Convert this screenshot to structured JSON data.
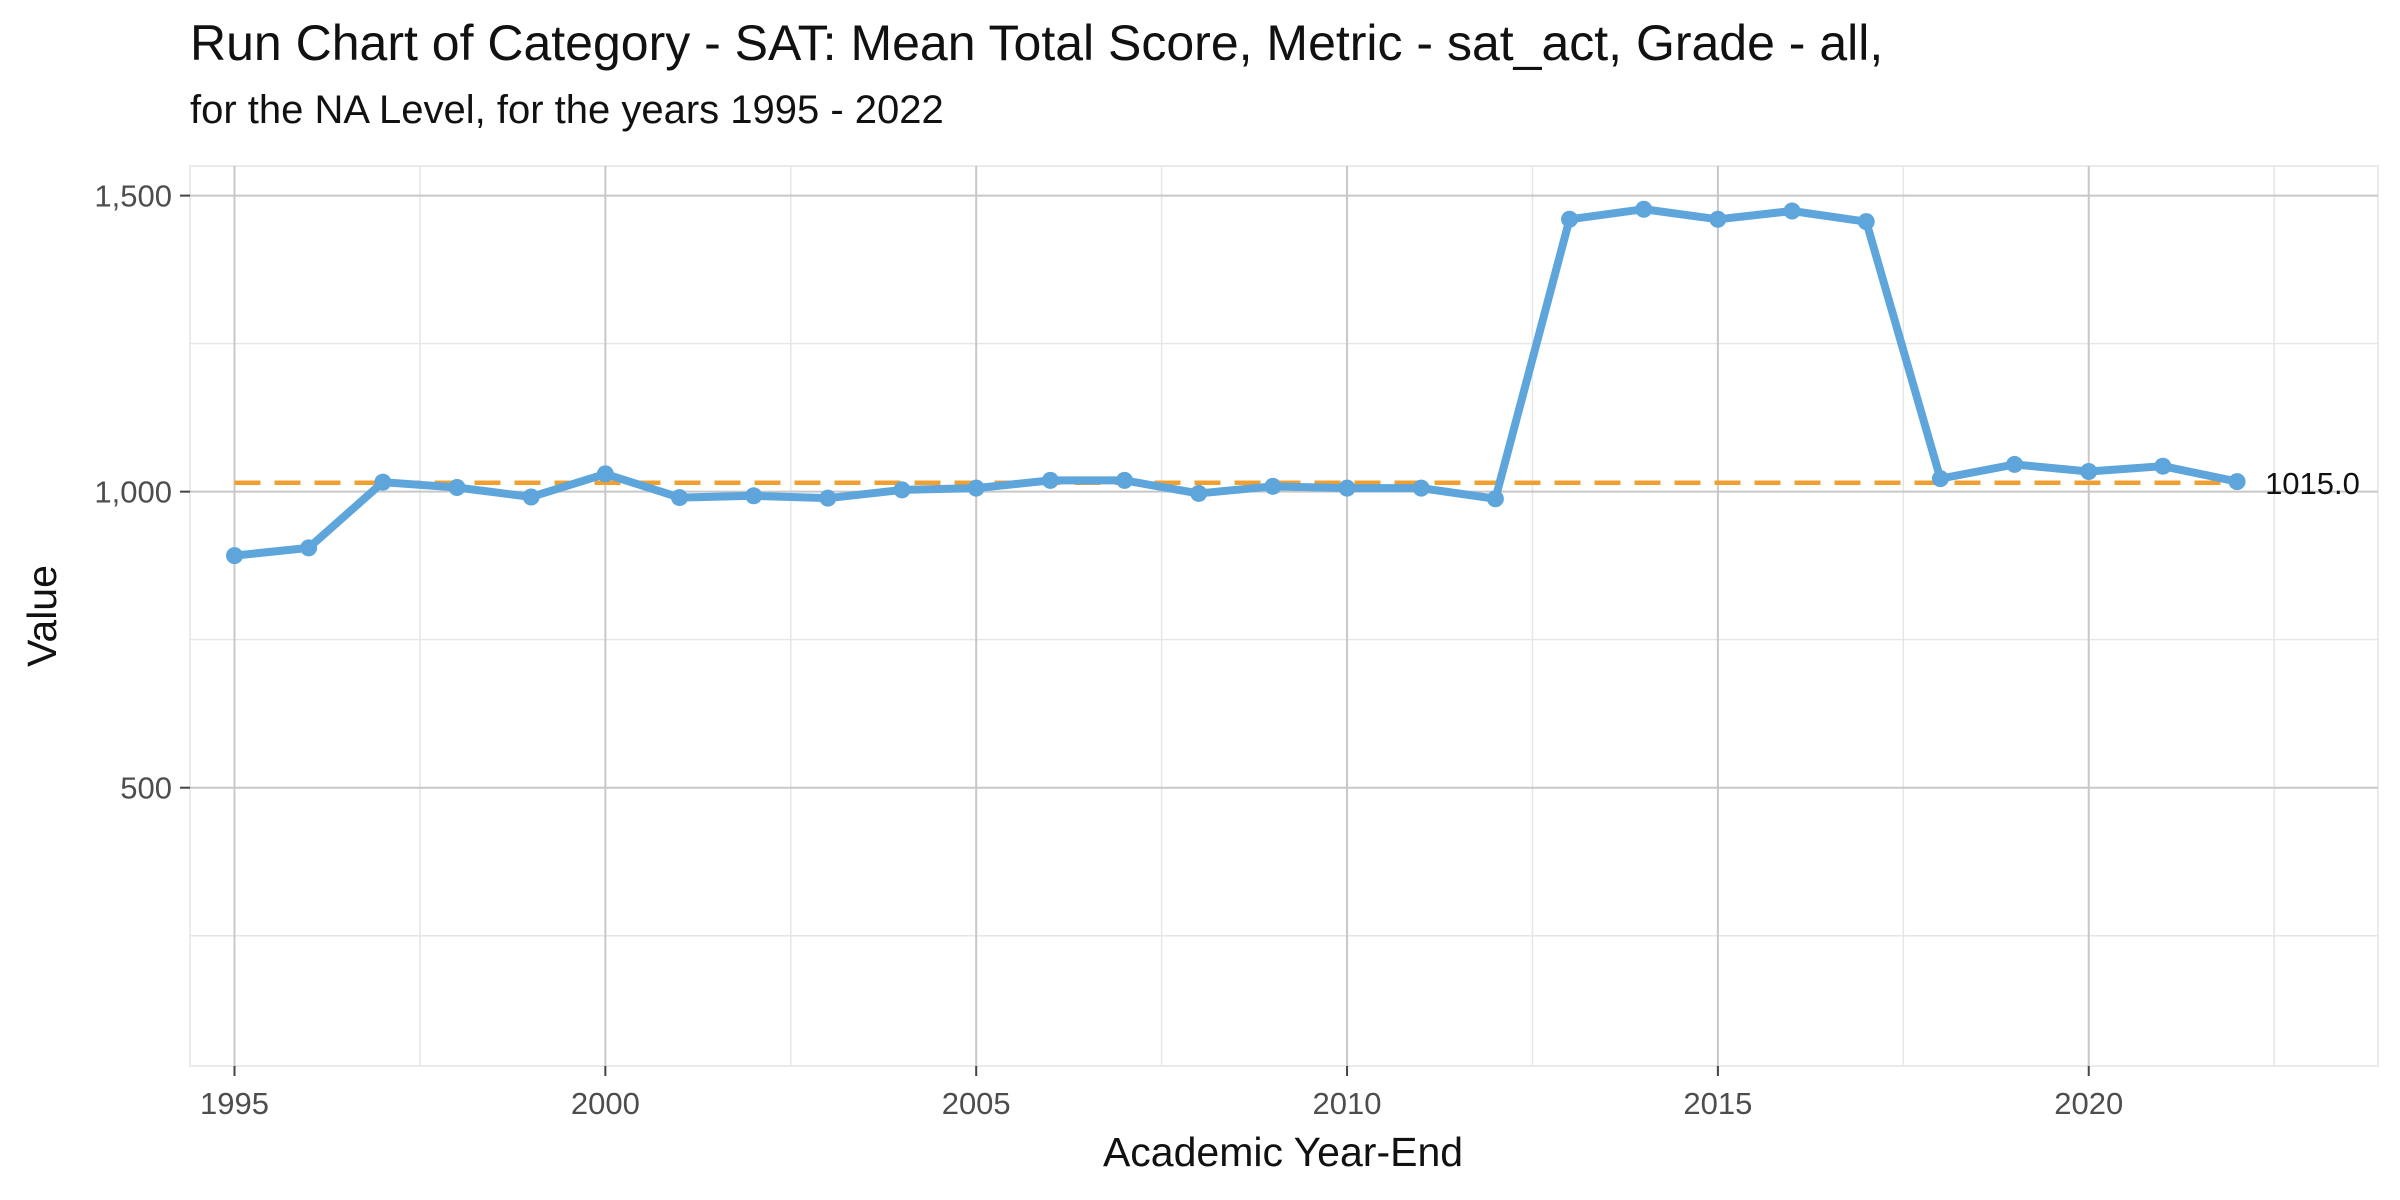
{
  "chart_data": {
    "type": "line",
    "title": "Run Chart of Category - SAT: Mean Total Score, Metric - sat_act, Grade - all,",
    "subtitle": "for the NA Level, for the years 1995 - 2022",
    "xlabel": "Academic Year-End",
    "ylabel": "Value",
    "xlim": [
      1994.4,
      2023.9
    ],
    "ylim": [
      30,
      1550
    ],
    "x_ticks": [
      1995,
      2000,
      2005,
      2010,
      2015,
      2020
    ],
    "x_tick_labels": [
      "1995",
      "2000",
      "2005",
      "2010",
      "2015",
      "2020"
    ],
    "x_minor_ticks": [
      1997.5,
      2002.5,
      2007.5,
      2012.5,
      2017.5,
      2022.5
    ],
    "y_ticks": [
      500,
      1000,
      1500
    ],
    "y_tick_labels": [
      "500",
      "1,000",
      "1,500"
    ],
    "y_minor_ticks": [
      250,
      750,
      1250
    ],
    "grid": true,
    "series": [
      {
        "color": "#5DA5DA",
        "x": [
          1995,
          1996,
          1997,
          1998,
          1999,
          2000,
          2001,
          2002,
          2003,
          2004,
          2005,
          2006,
          2007,
          2008,
          2009,
          2010,
          2011,
          2012,
          2013,
          2014,
          2015,
          2016,
          2017,
          2018,
          2019,
          2020,
          2021,
          2022
        ],
        "values": [
          892,
          905,
          1016,
          1007,
          991,
          1030,
          990,
          993,
          989,
          1003,
          1006,
          1019,
          1019,
          997,
          1009,
          1006,
          1006,
          988,
          1460,
          1477,
          1460,
          1474,
          1456,
          1022,
          1046,
          1034,
          1043,
          1017
        ]
      }
    ],
    "reference_line": {
      "value": 1015,
      "label": "1015.0",
      "color": "#F0A030",
      "style": "dashed"
    }
  }
}
